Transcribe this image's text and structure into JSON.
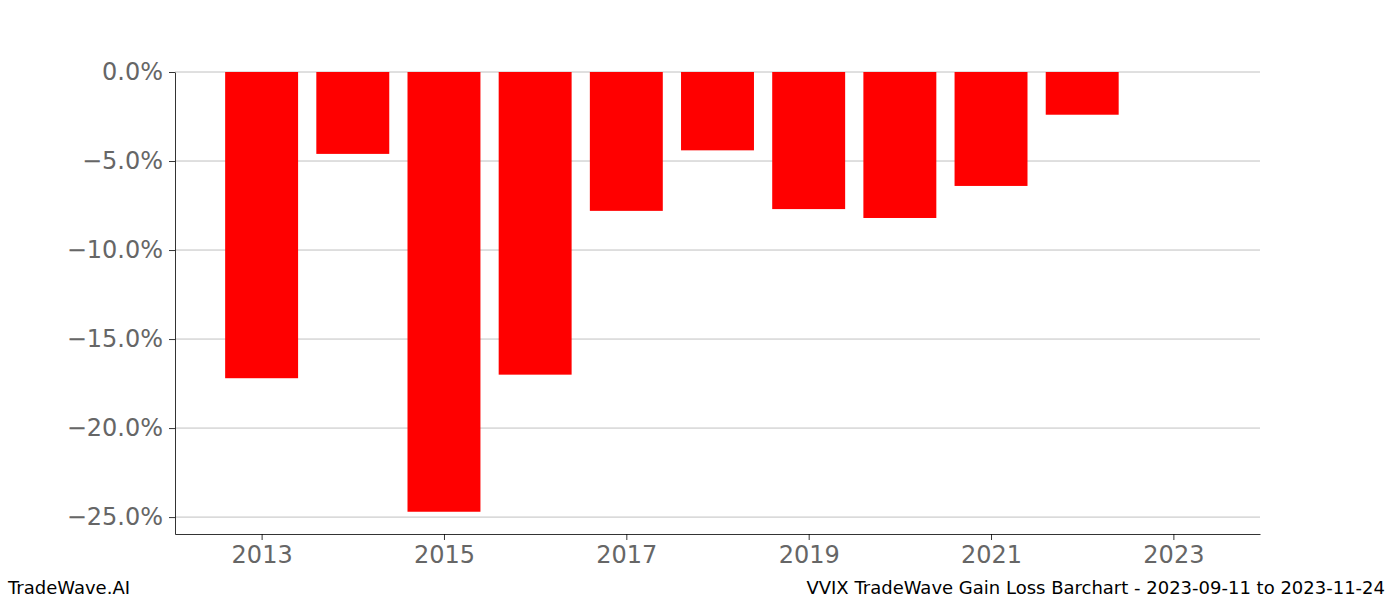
{
  "chart_data": {
    "type": "bar",
    "title": "VVIX TradeWave Gain Loss Barchart - 2023-09-11 to 2023-11-24",
    "source": "TradeWave.AI",
    "x": [
      2013,
      2014,
      2015,
      2016,
      2017,
      2018,
      2019,
      2020,
      2021,
      2022
    ],
    "values": [
      -17.2,
      -4.6,
      -24.7,
      -17.0,
      -7.8,
      -4.4,
      -7.7,
      -8.2,
      -6.4,
      -2.4
    ],
    "color": "#ff0000",
    "xlim": [
      2012.05,
      2023.95
    ],
    "xticks": [
      2013,
      2015,
      2017,
      2019,
      2021,
      2023
    ],
    "ylim": [
      -25.95,
      0
    ],
    "yticks": [
      {
        "value": 0,
        "label": "0.0%"
      },
      {
        "value": -5,
        "label": "−5.0%"
      },
      {
        "value": -10,
        "label": "−10.0%"
      },
      {
        "value": -15,
        "label": "−15.0%"
      },
      {
        "value": -20,
        "label": "−20.0%"
      },
      {
        "value": -25,
        "label": "−25.0%"
      }
    ],
    "grid": true
  }
}
